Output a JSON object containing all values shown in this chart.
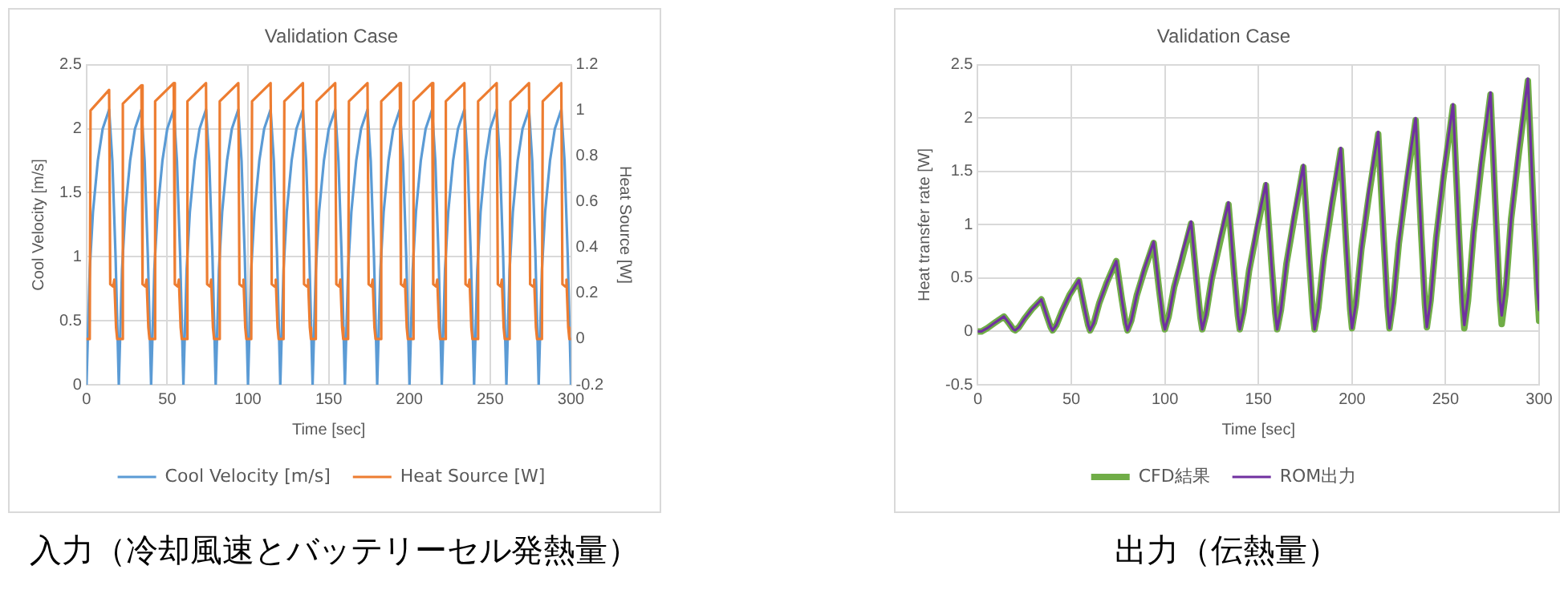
{
  "chart_data": [
    {
      "type": "line",
      "title": "Validation Case",
      "xlabel": "Time [sec]",
      "ylabel": "Cool Velocity [m/s]",
      "y2label": "Heat Source [W]",
      "xlim": [
        0,
        300
      ],
      "xticks": [
        0,
        50,
        100,
        150,
        200,
        250,
        300
      ],
      "ylim": [
        0,
        2.5
      ],
      "yticks": [
        0,
        0.5,
        1,
        1.5,
        2,
        2.5
      ],
      "y2lim": [
        -0.2,
        1.2
      ],
      "y2ticks": [
        -0.2,
        0,
        0.2,
        0.4,
        0.6,
        0.8,
        1,
        1.2
      ],
      "grid": true,
      "legend": "bottom",
      "marker": "none",
      "line_style": "solid",
      "annotations": [
        "入力（冷却風速とバッテリーセル発熱量）"
      ],
      "series": [
        {
          "name": "Cool Velocity [m/s]",
          "color": "#5b9bd5",
          "x": [
            0,
            2,
            4,
            7,
            10,
            14,
            16,
            18,
            20,
            22,
            24,
            27,
            30,
            34,
            36,
            38,
            40,
            42,
            44,
            47,
            50,
            54,
            56,
            58,
            60,
            62,
            64,
            67,
            70,
            74,
            76,
            78,
            80,
            82,
            84,
            87,
            90,
            94,
            96,
            98,
            100,
            102,
            104,
            107,
            110,
            114,
            116,
            118,
            120,
            122,
            124,
            127,
            130,
            134,
            136,
            138,
            140,
            142,
            144,
            147,
            150,
            154,
            156,
            158,
            160,
            162,
            164,
            167,
            170,
            174,
            176,
            178,
            180,
            182,
            184,
            187,
            190,
            194,
            196,
            198,
            200,
            202,
            204,
            207,
            210,
            214,
            216,
            218,
            220,
            222,
            224,
            227,
            230,
            234,
            236,
            238,
            240,
            242,
            244,
            247,
            250,
            254,
            256,
            258,
            260,
            262,
            264,
            267,
            270,
            274,
            276,
            278,
            280,
            282,
            284,
            287,
            290,
            294,
            296,
            298,
            300
          ],
          "values": [
            0,
            0.9,
            1.35,
            1.75,
            2.0,
            2.15,
            1.75,
            1.0,
            0,
            0.9,
            1.35,
            1.75,
            2.0,
            2.15,
            1.75,
            1.0,
            0,
            0.9,
            1.35,
            1.75,
            2.0,
            2.15,
            1.75,
            1.0,
            0,
            0.9,
            1.35,
            1.75,
            2.0,
            2.15,
            1.75,
            1.0,
            0,
            0.9,
            1.35,
            1.75,
            2.0,
            2.15,
            1.75,
            1.0,
            0,
            0.9,
            1.35,
            1.75,
            2.0,
            2.15,
            1.75,
            1.0,
            0,
            0.9,
            1.35,
            1.75,
            2.0,
            2.15,
            1.75,
            1.0,
            0,
            0.9,
            1.35,
            1.75,
            2.0,
            2.15,
            1.75,
            1.0,
            0,
            0.9,
            1.35,
            1.75,
            2.0,
            2.15,
            1.75,
            1.0,
            0,
            0.9,
            1.35,
            1.75,
            2.0,
            2.15,
            1.75,
            1.0,
            0,
            0.9,
            1.35,
            1.75,
            2.0,
            2.15,
            1.75,
            1.0,
            0,
            0.9,
            1.35,
            1.75,
            2.0,
            2.15,
            1.75,
            1.0,
            0,
            0.9,
            1.35,
            1.75,
            2.0,
            2.15,
            1.75,
            1.0,
            0,
            0.9,
            1.35,
            1.75,
            2.0,
            2.15,
            1.75,
            1.0,
            0,
            0.9,
            1.35,
            1.75,
            2.0,
            2.15,
            1.75,
            1.0,
            0
          ]
        },
        {
          "name": "Heat Source [W]",
          "color": "#ed7d31",
          "axis": "y2",
          "x": [
            0,
            2,
            2.5,
            14,
            14.7,
            16.5,
            17.2,
            18.3,
            19,
            22,
            22.5,
            34,
            34.7,
            36.5,
            37.2,
            38.3,
            39,
            42,
            42.5,
            54,
            54.7,
            56.5,
            57.2,
            58.3,
            59,
            62,
            62.5,
            74,
            74.7,
            76.5,
            77.2,
            78.3,
            79,
            82,
            82.5,
            94,
            94.7,
            96.5,
            97.2,
            98.3,
            99,
            102,
            102.5,
            114,
            114.7,
            116.5,
            117.2,
            118.3,
            119,
            122,
            122.5,
            134,
            134.7,
            136.5,
            137.2,
            138.3,
            139,
            142,
            142.5,
            154,
            154.7,
            156.5,
            157.2,
            158.3,
            159,
            162,
            162.5,
            174,
            174.7,
            176.5,
            177.2,
            178.3,
            179,
            182,
            182.5,
            194,
            194.7,
            196.5,
            197.2,
            198.3,
            199,
            202,
            202.5,
            214,
            214.7,
            216.5,
            217.2,
            218.3,
            219,
            222,
            222.5,
            234,
            234.7,
            236.5,
            237.2,
            238.3,
            239,
            242,
            242.5,
            254,
            254.7,
            256.5,
            257.2,
            258.3,
            259,
            262,
            262.5,
            274,
            274.7,
            276.5,
            277.2,
            278.3,
            279,
            282,
            282.5,
            294,
            294.7,
            296.5,
            297.2,
            298.3,
            299,
            300
          ],
          "values": [
            0,
            0,
            1.0,
            1.09,
            0.24,
            0.23,
            0.26,
            0.05,
            0,
            0,
            1.03,
            1.11,
            0.24,
            0.23,
            0.26,
            0.05,
            0,
            0,
            1.04,
            1.12,
            0.24,
            0.23,
            0.26,
            0.05,
            0,
            0,
            1.04,
            1.12,
            0.24,
            0.23,
            0.26,
            0.05,
            0,
            0,
            1.04,
            1.12,
            0.24,
            0.23,
            0.26,
            0.05,
            0,
            0,
            1.04,
            1.12,
            0.24,
            0.23,
            0.26,
            0.05,
            0,
            0,
            1.04,
            1.12,
            0.24,
            0.23,
            0.26,
            0.05,
            0,
            0,
            1.04,
            1.12,
            0.24,
            0.23,
            0.26,
            0.05,
            0,
            0,
            1.04,
            1.12,
            0.24,
            0.23,
            0.26,
            0.05,
            0,
            0,
            1.04,
            1.12,
            0.24,
            0.23,
            0.26,
            0.05,
            0,
            0,
            1.04,
            1.12,
            0.24,
            0.23,
            0.26,
            0.05,
            0,
            0,
            1.04,
            1.12,
            0.24,
            0.23,
            0.26,
            0.05,
            0,
            0,
            1.04,
            1.12,
            0.24,
            0.23,
            0.26,
            0.05,
            0,
            0,
            1.04,
            1.12,
            0.24,
            0.23,
            0.26,
            0.05,
            0,
            0,
            1.04,
            1.12,
            0.24,
            0.23,
            0.26,
            0.05,
            0,
            0
          ]
        }
      ]
    },
    {
      "type": "line",
      "title": "Validation Case",
      "xlabel": "Time [sec]",
      "ylabel": "Heat transfer rate [W]",
      "xlim": [
        0,
        300
      ],
      "xticks": [
        0,
        50,
        100,
        150,
        200,
        250,
        300
      ],
      "ylim": [
        -0.5,
        2.5
      ],
      "yticks": [
        -0.5,
        0,
        0.5,
        1,
        1.5,
        2,
        2.5
      ],
      "grid": true,
      "legend": "bottom",
      "marker": "none",
      "line_style": "solid",
      "annotations": [
        "出力（伝熱量）"
      ],
      "x": [
        0,
        2,
        5,
        9,
        14,
        17,
        19,
        20,
        22,
        25,
        29,
        34,
        37,
        39,
        40,
        42,
        45,
        49,
        54,
        57,
        59,
        60,
        62,
        65,
        69,
        74,
        77,
        79,
        80,
        82,
        85,
        89,
        94,
        97,
        99,
        100,
        102,
        105,
        109,
        114,
        117,
        119,
        120,
        122,
        125,
        129,
        134,
        137,
        139,
        140,
        142,
        145,
        149,
        154,
        157,
        159,
        160,
        162,
        165,
        169,
        174,
        177,
        179,
        180,
        182,
        185,
        189,
        194,
        197,
        199,
        200,
        202,
        205,
        209,
        214,
        217,
        219,
        220,
        222,
        225,
        229,
        234,
        237,
        239,
        240,
        242,
        245,
        249,
        254,
        257,
        259,
        260,
        262,
        265,
        269,
        274,
        277,
        279,
        280,
        282,
        285,
        289,
        294,
        297,
        299,
        300
      ],
      "series": [
        {
          "name": "CFD結果",
          "color": "#70ad47",
          "values": [
            0,
            0,
            0.03,
            0.08,
            0.14,
            0.07,
            0.02,
            0.01,
            0.04,
            0.12,
            0.21,
            0.3,
            0.14,
            0.04,
            0.01,
            0.06,
            0.19,
            0.34,
            0.48,
            0.22,
            0.06,
            0.01,
            0.08,
            0.27,
            0.46,
            0.66,
            0.3,
            0.08,
            0.01,
            0.1,
            0.34,
            0.57,
            0.83,
            0.38,
            0.1,
            0.02,
            0.14,
            0.42,
            0.67,
            1.01,
            0.47,
            0.13,
            0.02,
            0.16,
            0.49,
            0.8,
            1.19,
            0.55,
            0.15,
            0.02,
            0.18,
            0.57,
            0.93,
            1.37,
            0.63,
            0.17,
            0.02,
            0.2,
            0.64,
            1.05,
            1.54,
            0.71,
            0.19,
            0.02,
            0.22,
            0.7,
            1.16,
            1.7,
            0.78,
            0.21,
            0.03,
            0.25,
            0.77,
            1.27,
            1.85,
            0.85,
            0.23,
            0.03,
            0.27,
            0.82,
            1.36,
            1.98,
            0.91,
            0.25,
            0.04,
            0.29,
            0.88,
            1.46,
            2.11,
            0.97,
            0.27,
            0.03,
            0.29,
            0.93,
            1.54,
            2.22,
            1.04,
            0.3,
            0.07,
            0.35,
            1.05,
            1.65,
            2.35,
            1.15,
            0.4,
            0.1
          ]
        },
        {
          "name": "ROM出力",
          "color": "#7030a0",
          "values": [
            0,
            0,
            0.03,
            0.08,
            0.14,
            0.07,
            0.02,
            0.01,
            0.04,
            0.12,
            0.21,
            0.3,
            0.14,
            0.04,
            0.01,
            0.06,
            0.19,
            0.34,
            0.48,
            0.22,
            0.06,
            0.01,
            0.08,
            0.27,
            0.46,
            0.66,
            0.3,
            0.08,
            0.01,
            0.1,
            0.34,
            0.59,
            0.84,
            0.38,
            0.1,
            0.02,
            0.14,
            0.42,
            0.72,
            1.03,
            0.47,
            0.13,
            0.02,
            0.16,
            0.49,
            0.85,
            1.21,
            0.55,
            0.15,
            0.02,
            0.18,
            0.57,
            0.98,
            1.39,
            0.63,
            0.17,
            0.02,
            0.2,
            0.64,
            1.1,
            1.56,
            0.71,
            0.19,
            0.02,
            0.22,
            0.7,
            1.21,
            1.72,
            0.78,
            0.21,
            0.03,
            0.25,
            0.77,
            1.32,
            1.87,
            0.85,
            0.23,
            0.03,
            0.27,
            0.82,
            1.41,
            2.0,
            0.91,
            0.25,
            0.04,
            0.29,
            0.88,
            1.51,
            2.13,
            0.97,
            0.27,
            0.06,
            0.32,
            0.93,
            1.59,
            2.24,
            1.04,
            0.3,
            0.15,
            0.42,
            1.05,
            1.7,
            2.37,
            1.15,
            0.4,
            0.2
          ]
        }
      ]
    }
  ]
}
